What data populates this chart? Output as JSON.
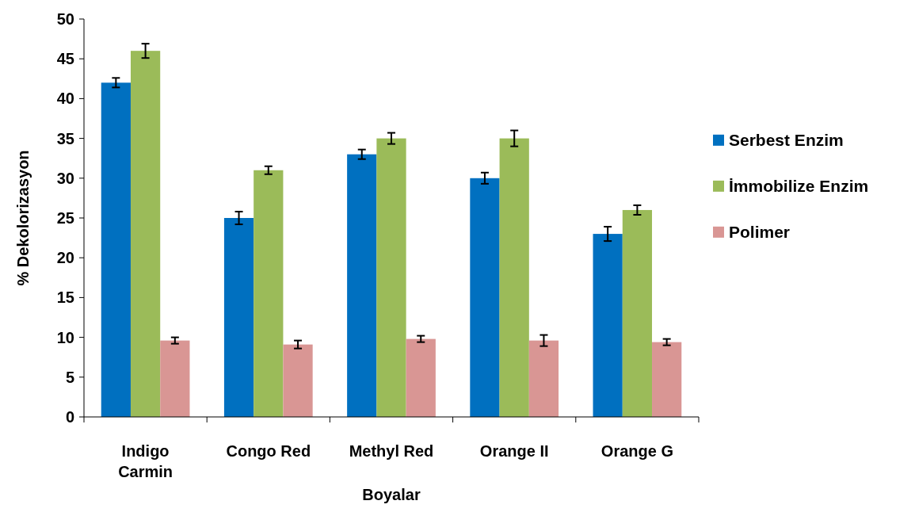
{
  "chart_data": {
    "type": "bar",
    "xlabel": "Boyalar",
    "ylabel": "% Dekolorizasyon",
    "categories": [
      "Indigo Carmin",
      "Congo Red",
      "Methyl Red",
      "Orange II",
      "Orange G"
    ],
    "series": [
      {
        "name": "Serbest Enzim",
        "color": "#0070c0",
        "values": [
          42,
          25,
          33,
          30,
          23
        ],
        "errors": [
          0.6,
          0.8,
          0.6,
          0.7,
          0.9
        ]
      },
      {
        "name": "İmmobilize Enzim",
        "color": "#9bbb59",
        "values": [
          46,
          31,
          35,
          35,
          26
        ],
        "errors": [
          0.9,
          0.5,
          0.7,
          1,
          0.6
        ]
      },
      {
        "name": "Polimer",
        "color": "#d99694",
        "values": [
          9.6,
          9.1,
          9.8,
          9.6,
          9.4
        ],
        "errors": [
          0.4,
          0.5,
          0.4,
          0.7,
          0.4
        ]
      }
    ],
    "ylim": [
      0,
      50
    ],
    "yticks": [
      0,
      5,
      10,
      15,
      20,
      25,
      30,
      35,
      40,
      45,
      50
    ],
    "legend": "right",
    "grid": false
  }
}
